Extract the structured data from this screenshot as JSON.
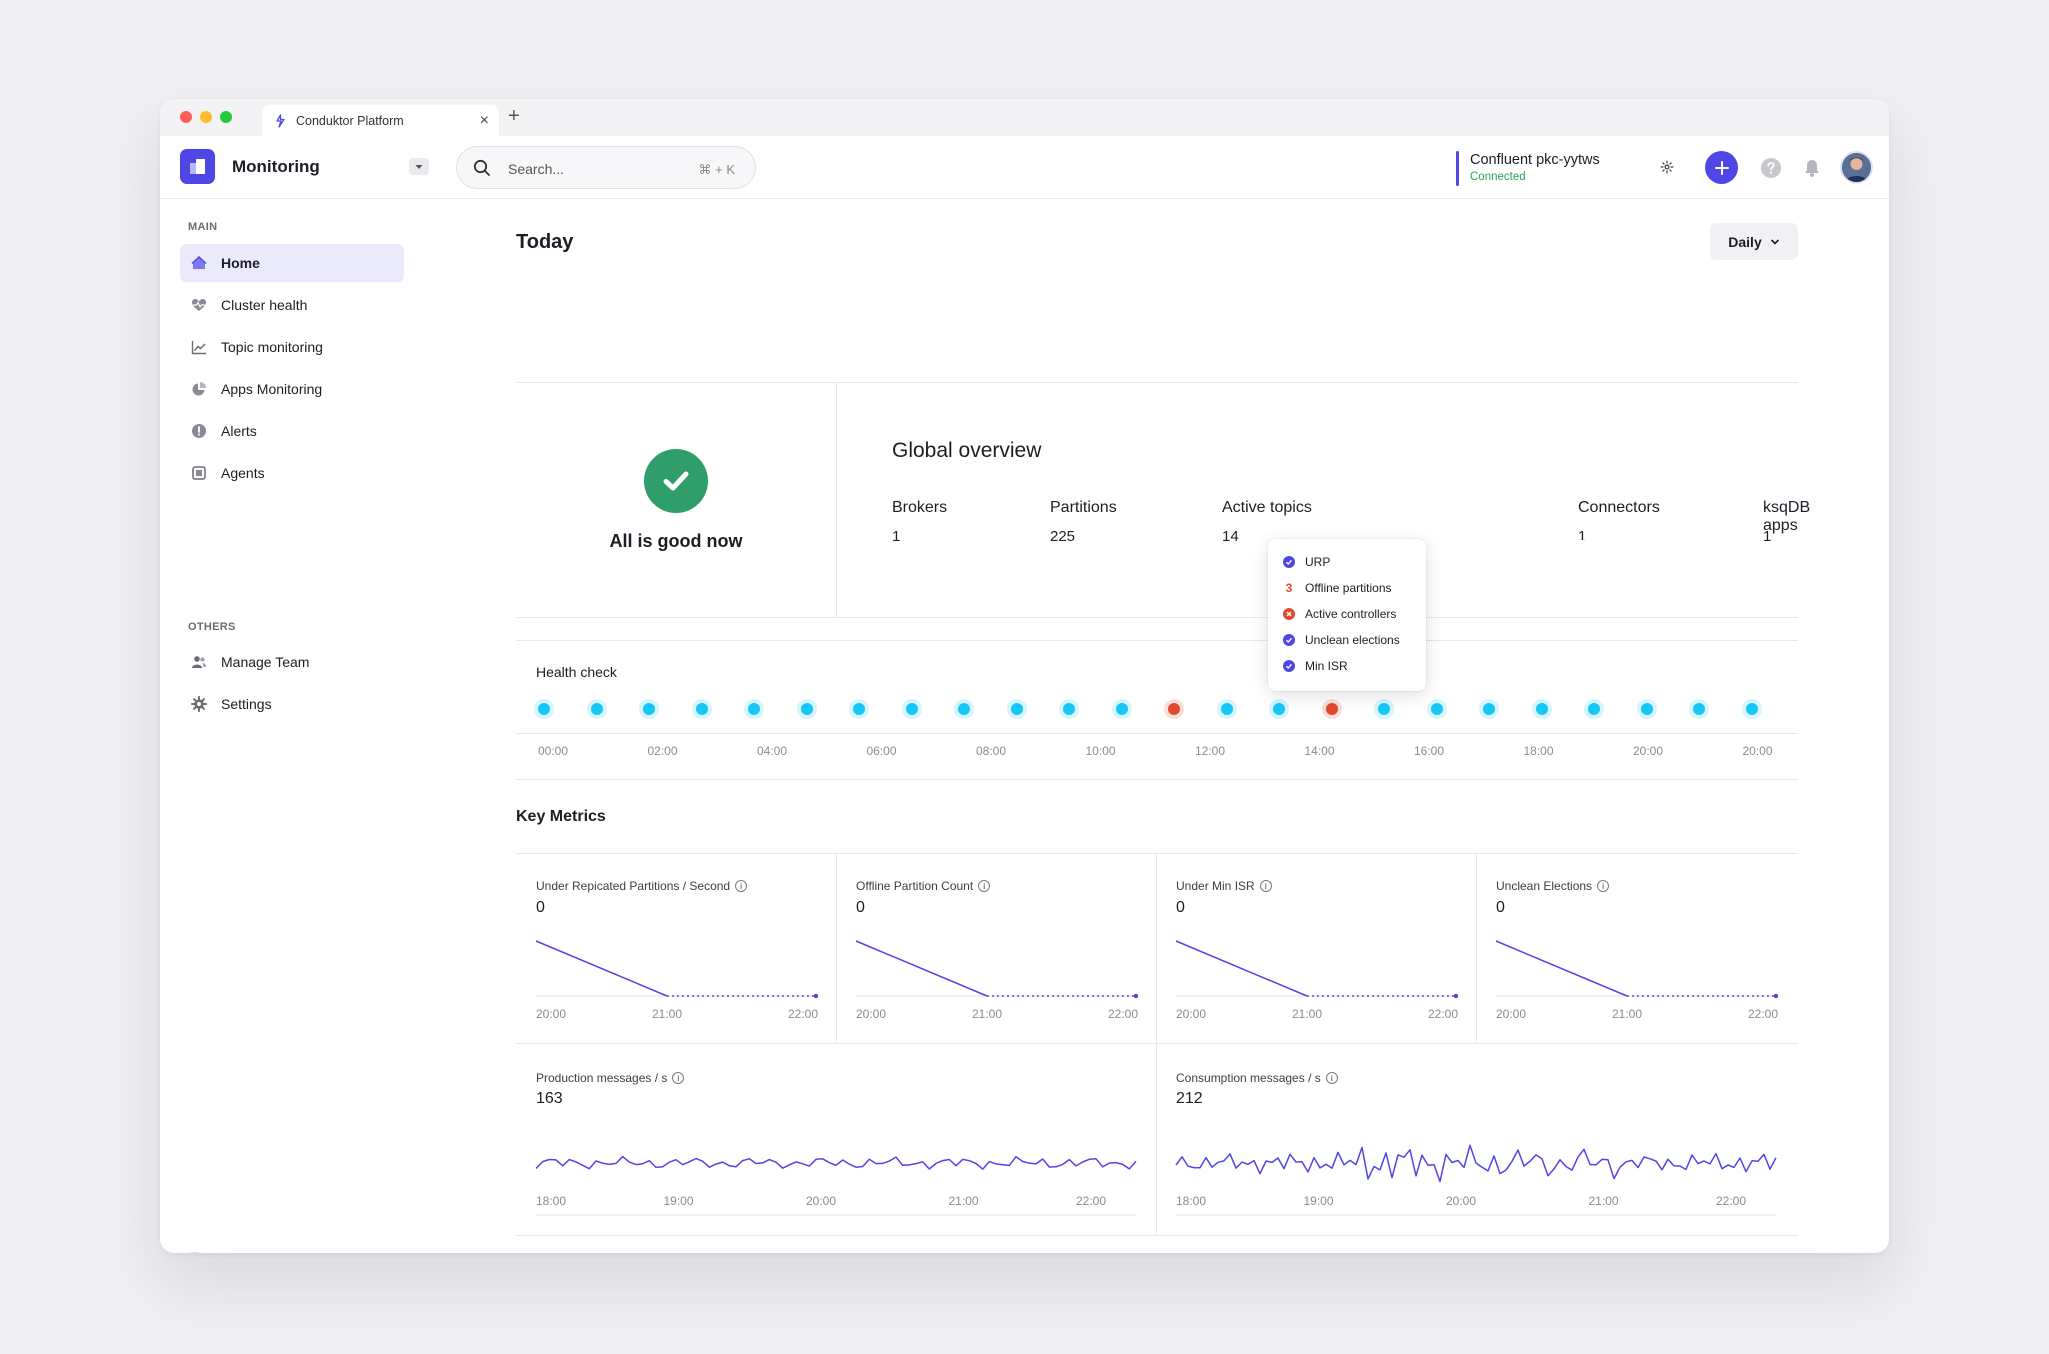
{
  "browser": {
    "tab_title": "Conduktor Platform",
    "close_glyph": "×",
    "new_tab_glyph": "+",
    "traffic_lights": {
      "close": "#ff5f57",
      "minimize": "#febc2e",
      "maximize": "#28c840"
    }
  },
  "header": {
    "app_title": "Monitoring",
    "search_placeholder": "Search...",
    "search_shortcut": "⌘ + K",
    "cluster_name": "Confluent pkc-yytws",
    "cluster_status": "Connected",
    "accent_color": "#4f46e5",
    "icons": [
      "gear-icon",
      "plus-icon",
      "help-icon",
      "bell-icon"
    ]
  },
  "sidebar": {
    "main_label": "MAIN",
    "main_items": [
      {
        "label": "Home",
        "icon": "home-icon",
        "active": true
      },
      {
        "label": "Cluster health",
        "icon": "heartbeat-icon"
      },
      {
        "label": "Topic monitoring",
        "icon": "trend-icon"
      },
      {
        "label": "Apps Monitoring",
        "icon": "pie-icon"
      },
      {
        "label": "Alerts",
        "icon": "alert-icon"
      },
      {
        "label": "Agents",
        "icon": "agent-icon"
      }
    ],
    "others_label": "OTHERS",
    "other_items": [
      {
        "label": "Manage Team",
        "icon": "team-icon"
      },
      {
        "label": "Settings",
        "icon": "gear-icon"
      }
    ]
  },
  "main": {
    "title": "Today",
    "period_select": "Daily",
    "status_text": "All is good now",
    "overview": {
      "title": "Global overview",
      "stats": [
        {
          "label": "Brokers",
          "value": "1"
        },
        {
          "label": "Partitions",
          "value": "225"
        },
        {
          "label": "Active topics",
          "value": "14"
        },
        {
          "label": "Connectors",
          "value": "1"
        },
        {
          "label": "ksqDB apps",
          "value": "1"
        }
      ]
    },
    "popover": [
      {
        "label": "URP",
        "state": "ok"
      },
      {
        "label": "Offline partitions",
        "state": "count",
        "count": "3"
      },
      {
        "label": "Active controllers",
        "state": "error"
      },
      {
        "label": "Unclean elections",
        "state": "ok"
      },
      {
        "label": "Min ISR",
        "state": "ok"
      }
    ],
    "health_check": {
      "title": "Health check",
      "statuses": [
        "ok",
        "ok",
        "ok",
        "ok",
        "ok",
        "ok",
        "ok",
        "ok",
        "ok",
        "ok",
        "ok",
        "ok",
        "error",
        "ok",
        "ok",
        "error",
        "ok",
        "ok",
        "ok",
        "ok",
        "ok",
        "ok",
        "ok",
        "ok"
      ],
      "ticks": [
        "00:00",
        "02:00",
        "04:00",
        "06:00",
        "08:00",
        "10:00",
        "12:00",
        "14:00",
        "16:00",
        "18:00",
        "20:00",
        "20:00"
      ],
      "colors": {
        "ok": "#18c6f5",
        "error": "#e0492f"
      }
    },
    "key_metrics": {
      "title": "Key Metrics",
      "cards": [
        {
          "label": "Under Repicated Partitions / Second",
          "value": "0",
          "x_ticks": [
            "20:00",
            "21:00",
            "22:00"
          ]
        },
        {
          "label": "Offline Partition Count",
          "value": "0",
          "x_ticks": [
            "20:00",
            "21:00",
            "22:00"
          ]
        },
        {
          "label": "Under Min ISR",
          "value": "0",
          "x_ticks": [
            "20:00",
            "21:00",
            "22:00"
          ]
        },
        {
          "label": "Unclean Elections",
          "value": "0",
          "x_ticks": [
            "20:00",
            "21:00",
            "22:00"
          ]
        }
      ],
      "wide_cards": [
        {
          "label": "Production messages / s",
          "value": "163",
          "x_ticks": [
            "18:00",
            "19:00",
            "20:00",
            "21:00",
            "22:00"
          ]
        },
        {
          "label": "Consumption messages / s",
          "value": "212",
          "x_ticks": [
            "18:00",
            "19:00",
            "20:00",
            "21:00",
            "22:00"
          ]
        }
      ]
    }
  }
}
